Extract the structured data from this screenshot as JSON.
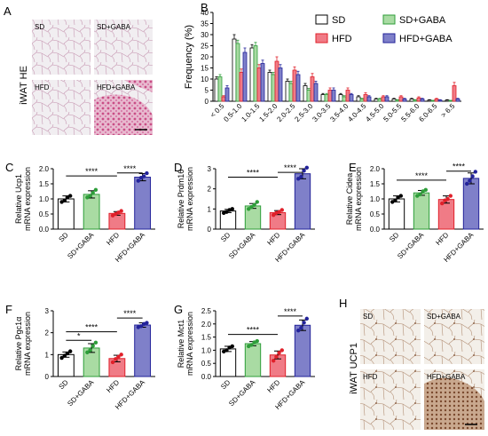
{
  "panels": {
    "A": {
      "letter": "A",
      "side_label": "iWAT HE",
      "tiles": [
        "SD",
        "SD+GABA",
        "HFD",
        "HFD+GABA"
      ]
    },
    "H": {
      "letter": "H",
      "side_label": "iWAT UCP1",
      "tiles": [
        "SD",
        "SD+GABA",
        "HFD",
        "HFD+GABA"
      ]
    }
  },
  "colors": {
    "SD": "#ffffff",
    "SD+GABA": "#a9dba3",
    "HFD": "#f07b86",
    "HFD+GABA": "#7f80c9",
    "SD_edge": "#000000",
    "SD+GABA_edge": "#2e9e3a",
    "HFD_edge": "#e0202a",
    "HFD+GABA_edge": "#23239a",
    "he_pink": "#d9679a",
    "ihc_brown": "#9b6a4c"
  },
  "chart_data": [
    {
      "panel": "B",
      "type": "bar",
      "ylabel": "Frequency (%)",
      "ylim": [
        0,
        40
      ],
      "yticks": [
        0,
        5,
        10,
        15,
        20,
        25,
        30,
        35,
        40
      ],
      "categories": [
        "< 0.5",
        "0.5-1.0",
        "1.0-1.5",
        "1.5-2.0",
        "2.0-2.5",
        "2.5-3.0",
        "3.0-3.5",
        "3.5-4.0",
        "4.0-4.5",
        "4.5-5.0",
        "5.0-5.5",
        "5.5-6.0",
        "6.0-6.5",
        "> 6.5"
      ],
      "legend": [
        "SD",
        "HFD",
        "SD+GABA",
        "HFD+GABA"
      ],
      "series": [
        {
          "name": "SD",
          "values": [
            10,
            28,
            24,
            13,
            9,
            7,
            3,
            3,
            2,
            1,
            1,
            1,
            0.5,
            0.5
          ],
          "err": [
            1,
            2,
            1.5,
            1,
            1,
            1,
            0.5,
            0.5,
            0.5,
            0.3,
            0.3,
            0.3,
            0.2,
            0.2
          ]
        },
        {
          "name": "SD+GABA",
          "values": [
            11,
            26,
            25,
            12,
            8,
            5,
            3,
            2,
            1,
            1,
            0.5,
            0.5,
            0.3,
            0.3
          ],
          "err": [
            1,
            1.5,
            1.5,
            1,
            1,
            0.8,
            0.5,
            0.5,
            0.3,
            0.3,
            0.2,
            0.2,
            0.1,
            0.1
          ]
        },
        {
          "name": "HFD",
          "values": [
            2,
            13,
            15,
            18,
            14,
            11,
            5,
            5,
            3,
            2,
            2,
            1.5,
            1,
            7
          ],
          "err": [
            0.5,
            1.5,
            1.5,
            2,
            1.5,
            1.5,
            1,
            1,
            0.8,
            0.5,
            0.5,
            0.5,
            0.3,
            1.5
          ]
        },
        {
          "name": "HFD+GABA",
          "values": [
            6,
            22,
            17,
            15,
            12,
            8,
            5,
            3,
            2,
            2,
            1,
            1,
            0.5,
            1
          ],
          "err": [
            1,
            2,
            1.5,
            1.5,
            1.5,
            1,
            1,
            0.5,
            0.5,
            0.5,
            0.3,
            0.3,
            0.2,
            0.3
          ]
        }
      ]
    },
    {
      "panel": "C",
      "type": "bar",
      "ylabel": [
        "Relative Ucp1",
        "mRNA expression"
      ],
      "ylim": [
        0,
        2.0
      ],
      "yticks": [
        0.0,
        0.5,
        1.0,
        1.5,
        2.0
      ],
      "categories": [
        "SD",
        "SD+GABA",
        "HFD",
        "HFD+GABA"
      ],
      "values": [
        1.0,
        1.15,
        0.52,
        1.72
      ],
      "err": [
        0.1,
        0.12,
        0.06,
        0.12
      ],
      "points": [
        [
          0.9,
          0.95,
          1.05,
          1.1
        ],
        [
          1.05,
          1.1,
          1.2,
          1.3
        ],
        [
          0.45,
          0.5,
          0.55,
          0.6
        ],
        [
          1.6,
          1.7,
          1.75,
          1.85
        ]
      ],
      "sig": [
        {
          "label": "****",
          "from": 0,
          "to": 2,
          "level": 0.88
        },
        {
          "label": "****",
          "from": 2,
          "to": 3,
          "level": 0.93
        }
      ]
    },
    {
      "panel": "D",
      "type": "bar",
      "ylabel": [
        "Relative Prdm16",
        "mRNA expression"
      ],
      "ylim": [
        0,
        3
      ],
      "yticks": [
        0,
        1,
        2,
        3
      ],
      "categories": [
        "SD",
        "SD+GABA",
        "HFD",
        "HFD+GABA"
      ],
      "values": [
        0.9,
        1.15,
        0.82,
        2.75
      ],
      "err": [
        0.08,
        0.12,
        0.1,
        0.25
      ],
      "points": [
        [
          0.8,
          0.85,
          0.95,
          1.0
        ],
        [
          1.0,
          1.1,
          1.2,
          1.35
        ],
        [
          0.7,
          0.8,
          0.85,
          0.95
        ],
        [
          2.5,
          2.6,
          2.9,
          3.05
        ]
      ],
      "sig": [
        {
          "label": "****",
          "from": 0,
          "to": 2,
          "level": 0.86
        },
        {
          "label": "****",
          "from": 2,
          "to": 3,
          "level": 0.94
        }
      ]
    },
    {
      "panel": "E",
      "type": "bar",
      "ylabel": [
        "Relative Cidea",
        "mRNA expression"
      ],
      "ylim": [
        0,
        2.0
      ],
      "yticks": [
        0.0,
        0.5,
        1.0,
        1.5,
        2.0
      ],
      "categories": [
        "SD",
        "SD+GABA",
        "HFD",
        "HFD+GABA"
      ],
      "values": [
        1.0,
        1.2,
        0.98,
        1.68
      ],
      "err": [
        0.1,
        0.08,
        0.12,
        0.18
      ],
      "points": [
        [
          0.9,
          0.95,
          1.05,
          1.1
        ],
        [
          1.1,
          1.15,
          1.25,
          1.3
        ],
        [
          0.85,
          0.95,
          1.0,
          1.1
        ],
        [
          1.5,
          1.6,
          1.75,
          1.9
        ]
      ],
      "sig": [
        {
          "label": "****",
          "from": 0,
          "to": 2,
          "level": 0.81
        },
        {
          "label": "****",
          "from": 2,
          "to": 3,
          "level": 0.96
        }
      ]
    },
    {
      "panel": "F",
      "type": "bar",
      "ylabel": [
        "Relative Pgc1α",
        "mRNA expression"
      ],
      "ylim": [
        0,
        3
      ],
      "yticks": [
        0,
        1,
        2,
        3
      ],
      "categories": [
        "SD",
        "SD+GABA",
        "HFD",
        "HFD+GABA"
      ],
      "values": [
        1.0,
        1.3,
        0.82,
        2.35
      ],
      "err": [
        0.12,
        0.2,
        0.15,
        0.1
      ],
      "points": [
        [
          0.85,
          0.95,
          1.05,
          1.15
        ],
        [
          1.1,
          1.2,
          1.4,
          1.55
        ],
        [
          0.65,
          0.8,
          0.9,
          1.0
        ],
        [
          2.25,
          2.3,
          2.4,
          2.45
        ]
      ],
      "sig": [
        {
          "label": "*",
          "from": 0,
          "to": 1,
          "level": 0.55
        },
        {
          "label": "****",
          "from": 0,
          "to": 2,
          "level": 0.68
        },
        {
          "label": "****",
          "from": 2,
          "to": 3,
          "level": 0.89
        }
      ]
    },
    {
      "panel": "G",
      "type": "bar",
      "ylabel": [
        "Relative Mct1",
        "mRNA expression"
      ],
      "ylim": [
        0,
        2.5
      ],
      "yticks": [
        0.0,
        0.5,
        1.0,
        1.5,
        2.0,
        2.5
      ],
      "categories": [
        "SD",
        "SD+GABA",
        "HFD",
        "HFD+GABA"
      ],
      "values": [
        1.05,
        1.25,
        0.82,
        1.95
      ],
      "err": [
        0.1,
        0.08,
        0.15,
        0.2
      ],
      "points": [
        [
          0.95,
          1.0,
          1.1,
          1.15
        ],
        [
          1.15,
          1.2,
          1.3,
          1.35
        ],
        [
          0.6,
          0.75,
          0.9,
          1.0
        ],
        [
          1.75,
          1.85,
          2.05,
          2.2
        ]
      ],
      "sig": [
        {
          "label": "****",
          "from": 0,
          "to": 2,
          "level": 0.64
        },
        {
          "label": "****",
          "from": 2,
          "to": 3,
          "level": 0.92
        }
      ]
    }
  ]
}
